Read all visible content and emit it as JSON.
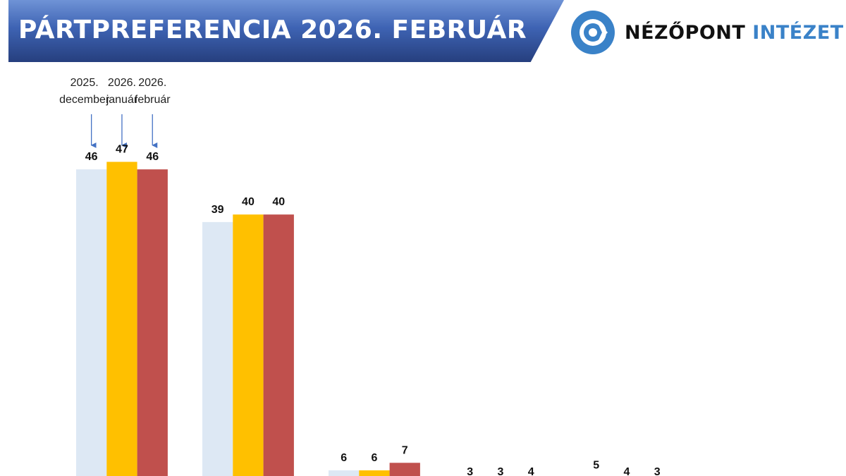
{
  "header": {
    "title": "PÁRTPREFERENCIA 2026. FEBRUÁR"
  },
  "logo": {
    "text_dark": "NÉZŐPONT",
    "text_blue": "INTÉZET",
    "brand_color": "#3a82c8"
  },
  "chart_data": {
    "type": "bar",
    "title": "PÁRTPREFERENCIA 2026. FEBRUÁR",
    "categories": [
      "",
      "",
      "",
      "",
      ""
    ],
    "series": [
      {
        "name": "2025. december",
        "color": "#dde8f4",
        "values": [
          46,
          39,
          6,
          3,
          5
        ]
      },
      {
        "name": "2026. január",
        "color": "#ffc000",
        "values": [
          47,
          40,
          6,
          3,
          4
        ]
      },
      {
        "name": "2026. február",
        "color": "#c0504d",
        "values": [
          46,
          40,
          7,
          4,
          3
        ]
      }
    ],
    "legend_lines": [
      [
        "2025.",
        "december"
      ],
      [
        "2026.",
        "január"
      ],
      [
        "2026.",
        "február"
      ]
    ],
    "legend_placement": "top-left, arrows pointing to first group",
    "grid": false
  }
}
